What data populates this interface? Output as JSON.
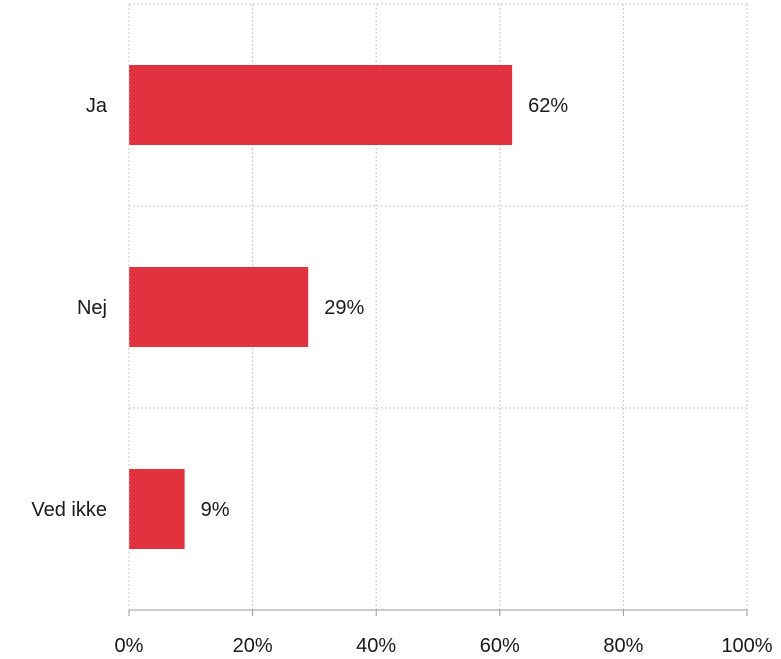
{
  "chart_data": {
    "type": "bar",
    "orientation": "horizontal",
    "categories": [
      "Ja",
      "Nej",
      "Ved ikke"
    ],
    "values": [
      62,
      29,
      9
    ],
    "value_labels": [
      "62%",
      "29%",
      "9%"
    ],
    "xlim": [
      0,
      100
    ],
    "xticks": [
      0,
      20,
      40,
      60,
      80,
      100
    ],
    "xtick_labels": [
      "0%",
      "20%",
      "40%",
      "60%",
      "80%",
      "100%"
    ],
    "grid": true,
    "legend": "none",
    "bar_color": "#e3323f"
  }
}
